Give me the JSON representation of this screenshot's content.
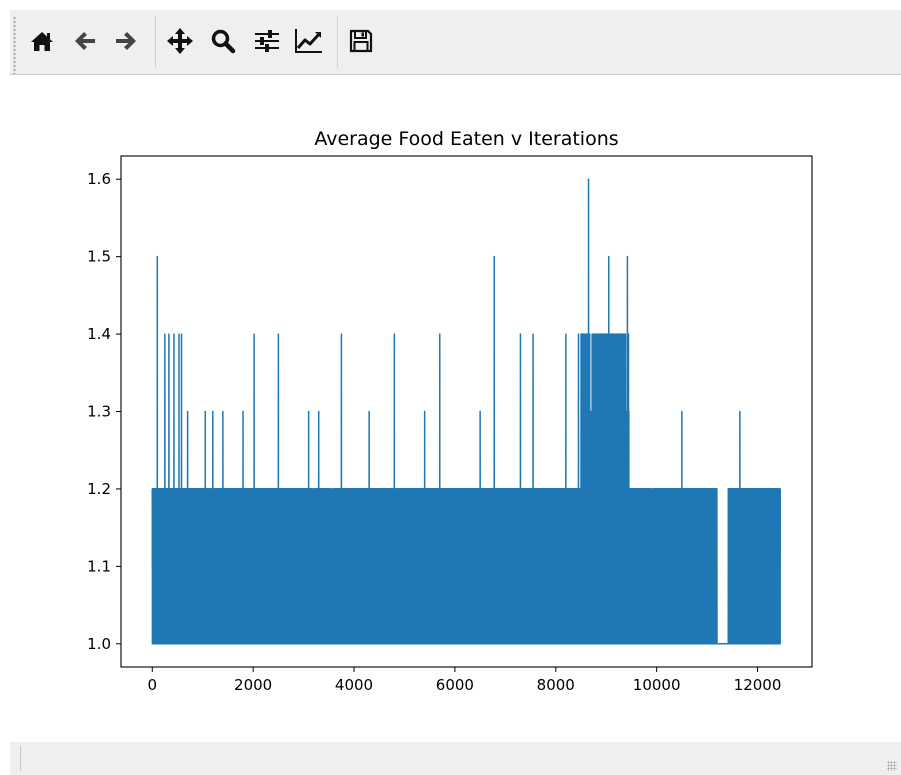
{
  "toolbar": {
    "buttons": [
      {
        "icon": "home-icon"
      },
      {
        "icon": "back-arrow-icon"
      },
      {
        "icon": "forward-arrow-icon"
      },
      {
        "icon": "pan-move-icon"
      },
      {
        "icon": "zoom-magnifier-icon"
      },
      {
        "icon": "subplots-sliders-icon"
      },
      {
        "icon": "edit-axis-chart-icon"
      },
      {
        "icon": "save-floppy-icon"
      }
    ]
  },
  "chart_data": {
    "type": "line",
    "title": "Average Food Eaten v Iterations",
    "xlabel": "",
    "ylabel": "",
    "xlim": [
      -620,
      13080
    ],
    "ylim": [
      0.97,
      1.63
    ],
    "xticks": [
      0,
      2000,
      4000,
      6000,
      8000,
      10000,
      12000
    ],
    "yticks": [
      1.0,
      1.1,
      1.2,
      1.3,
      1.4,
      1.5,
      1.6
    ],
    "ytick_labels": [
      "1.0",
      "1.1",
      "1.2",
      "1.3",
      "1.4",
      "1.5",
      "1.6"
    ],
    "grid": false,
    "color": "#1f77b4",
    "n_points": 12460,
    "series": [
      {
        "x_range": [
          0,
          12450
        ],
        "baseline": 1.0,
        "spikes": [
          {
            "x": 100,
            "y": 1.5
          },
          {
            "x": 250,
            "y": 1.4
          },
          {
            "x": 330,
            "y": 1.4
          },
          {
            "x": 430,
            "y": 1.4
          },
          {
            "x": 530,
            "y": 1.4
          },
          {
            "x": 580,
            "y": 1.4
          },
          {
            "x": 700,
            "y": 1.3
          },
          {
            "x": 1050,
            "y": 1.3
          },
          {
            "x": 1200,
            "y": 1.3
          },
          {
            "x": 1400,
            "y": 1.3
          },
          {
            "x": 1800,
            "y": 1.3
          },
          {
            "x": 2020,
            "y": 1.4
          },
          {
            "x": 2500,
            "y": 1.4
          },
          {
            "x": 3100,
            "y": 1.3
          },
          {
            "x": 3300,
            "y": 1.3
          },
          {
            "x": 3750,
            "y": 1.4
          },
          {
            "x": 4300,
            "y": 1.3
          },
          {
            "x": 4800,
            "y": 1.4
          },
          {
            "x": 5400,
            "y": 1.3
          },
          {
            "x": 5700,
            "y": 1.4
          },
          {
            "x": 6500,
            "y": 1.3
          },
          {
            "x": 6780,
            "y": 1.5
          },
          {
            "x": 7300,
            "y": 1.4
          },
          {
            "x": 7550,
            "y": 1.4
          },
          {
            "x": 8200,
            "y": 1.4
          },
          {
            "x": 8450,
            "y": 1.4
          },
          {
            "x": 8650,
            "y": 1.6
          },
          {
            "x": 8850,
            "y": 1.4
          },
          {
            "x": 9050,
            "y": 1.5
          },
          {
            "x": 9200,
            "y": 1.4
          },
          {
            "x": 9420,
            "y": 1.5
          },
          {
            "x": 10500,
            "y": 1.3
          },
          {
            "x": 11650,
            "y": 1.3
          }
        ]
      }
    ]
  }
}
